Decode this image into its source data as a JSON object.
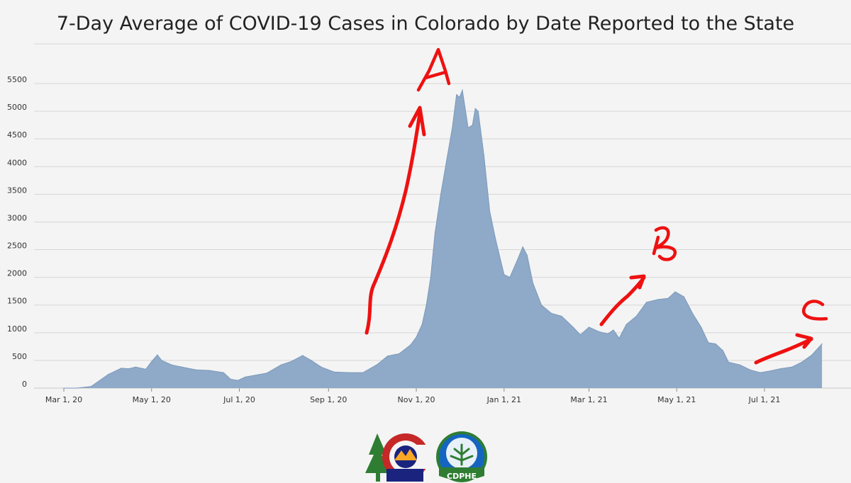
{
  "chart_data": {
    "type": "area",
    "title": "7-Day Average of COVID-19 Cases in Colorado by Date Reported to the State",
    "xlabel": "",
    "ylabel": "",
    "ylim": [
      0,
      5500
    ],
    "yticks": [
      0,
      500,
      1000,
      1500,
      2000,
      2500,
      3000,
      3500,
      4000,
      4500,
      5000,
      5500
    ],
    "xticks": [
      "Mar 1, 20",
      "May 1, 20",
      "Jul 1, 20",
      "Sep 1, 20",
      "Nov 1, 20",
      "Jan 1, 21",
      "Mar 1, 21",
      "May 1, 21",
      "Jul 1, 21"
    ],
    "grid": true,
    "series": [
      {
        "color": "#8eaac8",
        "points": [
          [
            "2020-03-01",
            0
          ],
          [
            "2020-03-10",
            0
          ],
          [
            "2020-03-20",
            30
          ],
          [
            "2020-04-01",
            250
          ],
          [
            "2020-04-10",
            360
          ],
          [
            "2020-04-15",
            350
          ],
          [
            "2020-04-20",
            380
          ],
          [
            "2020-04-27",
            340
          ],
          [
            "2020-05-01",
            480
          ],
          [
            "2020-05-05",
            600
          ],
          [
            "2020-05-08",
            500
          ],
          [
            "2020-05-15",
            420
          ],
          [
            "2020-05-22",
            380
          ],
          [
            "2020-06-01",
            330
          ],
          [
            "2020-06-10",
            320
          ],
          [
            "2020-06-20",
            280
          ],
          [
            "2020-06-25",
            160
          ],
          [
            "2020-06-30",
            140
          ],
          [
            "2020-07-05",
            200
          ],
          [
            "2020-07-20",
            270
          ],
          [
            "2020-07-30",
            420
          ],
          [
            "2020-08-06",
            480
          ],
          [
            "2020-08-14",
            590
          ],
          [
            "2020-08-20",
            500
          ],
          [
            "2020-08-27",
            380
          ],
          [
            "2020-09-05",
            290
          ],
          [
            "2020-09-15",
            280
          ],
          [
            "2020-09-25",
            280
          ],
          [
            "2020-10-05",
            430
          ],
          [
            "2020-10-12",
            580
          ],
          [
            "2020-10-20",
            620
          ],
          [
            "2020-10-28",
            780
          ],
          [
            "2020-11-01",
            920
          ],
          [
            "2020-11-05",
            1150
          ],
          [
            "2020-11-08",
            1500
          ],
          [
            "2020-11-11",
            2000
          ],
          [
            "2020-11-14",
            2800
          ],
          [
            "2020-11-18",
            3500
          ],
          [
            "2020-11-22",
            4100
          ],
          [
            "2020-11-26",
            4700
          ],
          [
            "2020-11-29",
            5300
          ],
          [
            "2020-12-01",
            5250
          ],
          [
            "2020-12-03",
            5380
          ],
          [
            "2020-12-07",
            4700
          ],
          [
            "2020-12-10",
            4750
          ],
          [
            "2020-12-12",
            5050
          ],
          [
            "2020-12-14",
            5000
          ],
          [
            "2020-12-18",
            4200
          ],
          [
            "2020-12-22",
            3200
          ],
          [
            "2020-12-26",
            2700
          ],
          [
            "2021-01-01",
            2050
          ],
          [
            "2021-01-05",
            2000
          ],
          [
            "2021-01-10",
            2300
          ],
          [
            "2021-01-14",
            2550
          ],
          [
            "2021-01-17",
            2400
          ],
          [
            "2021-01-21",
            1900
          ],
          [
            "2021-01-27",
            1500
          ],
          [
            "2021-02-03",
            1350
          ],
          [
            "2021-02-10",
            1300
          ],
          [
            "2021-02-18",
            1100
          ],
          [
            "2021-02-23",
            960
          ],
          [
            "2021-03-01",
            1100
          ],
          [
            "2021-03-08",
            1020
          ],
          [
            "2021-03-14",
            980
          ],
          [
            "2021-03-18",
            1050
          ],
          [
            "2021-03-22",
            900
          ],
          [
            "2021-03-27",
            1150
          ],
          [
            "2021-04-03",
            1300
          ],
          [
            "2021-04-10",
            1550
          ],
          [
            "2021-04-18",
            1600
          ],
          [
            "2021-04-25",
            1620
          ],
          [
            "2021-04-30",
            1740
          ],
          [
            "2021-05-06",
            1650
          ],
          [
            "2021-05-12",
            1350
          ],
          [
            "2021-05-18",
            1100
          ],
          [
            "2021-05-23",
            820
          ],
          [
            "2021-05-28",
            800
          ],
          [
            "2021-06-02",
            680
          ],
          [
            "2021-06-06",
            470
          ],
          [
            "2021-06-14",
            420
          ],
          [
            "2021-06-21",
            330
          ],
          [
            "2021-06-28",
            280
          ],
          [
            "2021-07-05",
            310
          ],
          [
            "2021-07-12",
            350
          ],
          [
            "2021-07-20",
            380
          ],
          [
            "2021-07-27",
            470
          ],
          [
            "2021-08-03",
            600
          ],
          [
            "2021-08-10",
            800
          ]
        ]
      }
    ]
  },
  "annotations": {
    "a": "A",
    "b": "B",
    "c": "C"
  },
  "logos": {
    "seal_text": "CDPHE"
  }
}
